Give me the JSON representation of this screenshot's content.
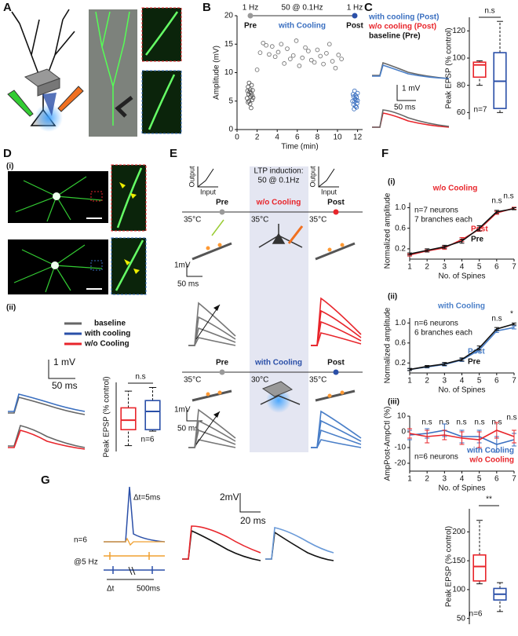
{
  "panel_labels": [
    "A",
    "B",
    "C",
    "D",
    "E",
    "F",
    "G"
  ],
  "panel_B": {
    "top": [
      "1 Hz",
      "50 @ 0.1Hz",
      "1 Hz"
    ],
    "phases": [
      "Pre",
      "with Cooling",
      "Post"
    ]
  },
  "panel_C": {
    "legend": [
      "with cooling (Post)",
      "w/o cooling (Post)",
      "baseline (Pre)"
    ],
    "scale": [
      "1 mV",
      "50 ms"
    ]
  },
  "panel_D": {
    "sub": [
      "(i)",
      "(ii)"
    ],
    "legend": [
      "baseline",
      "with cooling",
      "w/o Cooling"
    ],
    "scale": [
      "1 mV",
      "50 ms"
    ]
  },
  "panel_E": {
    "io": [
      "Output",
      "Input"
    ],
    "induction": [
      "LTP induction:",
      "50 @ 0.1Hz"
    ],
    "row1": {
      "phases": [
        "Pre",
        "w/o Cooling",
        "Post"
      ],
      "temps": [
        "35°C",
        "35°C",
        "35°C"
      ],
      "scale": [
        "1mV",
        "50 ms"
      ]
    },
    "row2": {
      "phases": [
        "Pre",
        "with Cooling",
        "Post"
      ],
      "temps": [
        "35°C",
        "30°C",
        "35°C"
      ],
      "scale": [
        "1mV",
        "50 ms"
      ]
    }
  },
  "panel_F": {
    "sub": [
      "(i)",
      "(ii)",
      "(iii)"
    ]
  },
  "panel_G": {
    "dt_label": "Δt=5ms",
    "n": "n=6",
    "freq": "@5 Hz",
    "dt": "Δt",
    "interval": "500ms",
    "scale": [
      "2mV",
      "20 ms"
    ]
  },
  "chart_data": [
    {
      "type": "scatter",
      "xlabel": "Time (min)",
      "ylabel": "Amplitude (mV)",
      "xlim": [
        0,
        12.5
      ],
      "ylim": [
        0,
        20
      ],
      "xticks": [
        0,
        2,
        4,
        6,
        8,
        10,
        12
      ],
      "yticks": [
        0,
        5,
        10,
        15,
        20
      ],
      "series": [
        {
          "color": "#555555",
          "x": [
            1.0,
            1.05,
            1.1,
            1.1,
            1.15,
            1.2,
            1.2,
            1.25,
            1.3,
            1.3,
            1.35,
            1.4,
            1.4,
            1.45,
            1.5,
            1.5,
            1.55,
            1.6
          ],
          "values": [
            5.5,
            6.8,
            4.8,
            7.5,
            6.2,
            5.0,
            8.2,
            6.6,
            4.5,
            7.0,
            5.8,
            6.4,
            3.8,
            7.8,
            5.2,
            6.0,
            6.9,
            5.6
          ]
        },
        {
          "color": "#777777",
          "x": [
            2.0,
            2.3,
            2.6,
            2.9,
            3.2,
            3.5,
            3.8,
            4.1,
            4.4,
            4.7,
            5.0,
            5.3,
            5.6,
            5.9,
            6.2,
            6.5,
            6.8,
            7.1,
            7.4,
            7.7,
            8.0,
            8.3,
            8.6,
            8.9,
            9.2,
            9.5,
            9.8,
            10.1,
            10.4
          ],
          "values": [
            10.5,
            13.5,
            15.2,
            14.8,
            13.2,
            14.6,
            12.8,
            13.6,
            15.0,
            11.6,
            14.2,
            12.4,
            13.0,
            15.6,
            11.2,
            12.6,
            14.4,
            13.8,
            12.2,
            11.8,
            14.0,
            12.9,
            11.5,
            13.4,
            15.0,
            12.0,
            10.8,
            13.1,
            12.4
          ]
        },
        {
          "color": "#3a6fc0",
          "x": [
            11.5,
            11.55,
            11.6,
            11.6,
            11.65,
            11.7,
            11.7,
            11.75,
            11.8,
            11.8,
            11.85,
            11.9,
            11.9,
            11.95,
            12.0,
            12.0
          ],
          "values": [
            5.0,
            6.2,
            4.4,
            5.8,
            3.6,
            6.8,
            4.9,
            5.4,
            4.1,
            6.0,
            5.2,
            3.9,
            5.7,
            4.6,
            6.4,
            5.1
          ]
        }
      ]
    },
    {
      "type": "box",
      "ylabel": "Peak EPSP (% control)",
      "ylim": [
        55,
        130
      ],
      "yticks": [
        60,
        80,
        100,
        120
      ],
      "boxes": [
        {
          "color": "#e8252b",
          "stats": [
            80,
            86,
            95,
            97,
            98
          ]
        },
        {
          "color": "#2a4fa8",
          "stats": [
            60,
            63,
            83,
            104,
            127
          ]
        }
      ],
      "annotations": [
        "n.s",
        "n=7"
      ]
    },
    {
      "type": "box",
      "ylabel": "Peak EPSP (% control)",
      "ylim": [
        45,
        140
      ],
      "boxes": [
        {
          "color": "#e8252b",
          "stats": [
            53,
            75,
            88,
            105,
            128
          ]
        },
        {
          "color": "#2a4fa8",
          "stats": [
            73,
            75,
            100,
            115,
            133
          ]
        }
      ],
      "annotations": [
        "n.s",
        "n=6"
      ]
    },
    {
      "type": "line",
      "title": "w/o Cooling",
      "xlabel": "No. of Spines",
      "ylabel": "Normalized amplitude",
      "x": [
        1,
        2,
        3,
        4,
        5,
        6,
        7
      ],
      "xlim": [
        1,
        7
      ],
      "ylim": [
        0,
        1.1
      ],
      "xticks": [
        1,
        2,
        3,
        4,
        5,
        6,
        7
      ],
      "yticks": [
        0.2,
        0.6,
        {
          "value": 1,
          "label": "1.0"
        }
      ],
      "series": [
        {
          "name": "Post",
          "color": "#e8252b",
          "values": [
            0.08,
            0.16,
            0.22,
            0.38,
            0.58,
            0.9,
            0.99
          ],
          "errors": [
            0.02,
            0.02,
            0.03,
            0.04,
            0.04,
            0.03,
            0.02
          ]
        },
        {
          "name": "Pre",
          "color": "#111111",
          "values": [
            0.1,
            0.17,
            0.24,
            0.35,
            0.6,
            0.92,
            0.98
          ],
          "errors": [
            0.02,
            0.03,
            0.03,
            0.04,
            0.05,
            0.03,
            0.02
          ]
        }
      ],
      "annotations": [
        "n=7 neurons",
        "7 branches each",
        "n.s",
        "n.s"
      ]
    },
    {
      "type": "line",
      "title": "with Cooling",
      "xlabel": "No. of Spines",
      "ylabel": "Normalized amplitude",
      "x": [
        1,
        2,
        3,
        4,
        5,
        6,
        7
      ],
      "xlim": [
        1,
        7
      ],
      "ylim": [
        0,
        1.1
      ],
      "xticks": [
        1,
        2,
        3,
        4,
        5,
        6,
        7
      ],
      "yticks": [
        0.2,
        0.6,
        {
          "value": 1,
          "label": "1.0"
        }
      ],
      "series": [
        {
          "name": "Post",
          "color": "#4a7fc8",
          "values": [
            0.07,
            0.12,
            0.17,
            0.26,
            0.46,
            0.84,
            0.91
          ],
          "errors": [
            0.02,
            0.02,
            0.03,
            0.03,
            0.04,
            0.03,
            0.03
          ]
        },
        {
          "name": "Pre",
          "color": "#111111",
          "values": [
            0.07,
            0.13,
            0.18,
            0.27,
            0.5,
            0.88,
            0.98
          ],
          "errors": [
            0.02,
            0.02,
            0.03,
            0.03,
            0.04,
            0.03,
            0.02
          ]
        }
      ],
      "annotations": [
        "n=6 neurons",
        "6 branches each",
        "n.s",
        "*"
      ]
    },
    {
      "type": "line",
      "xlabel": "No. of Spines",
      "ylabel": "AmpPost-AmpCtl (%)",
      "x": [
        1,
        2,
        3,
        4,
        5,
        6,
        7
      ],
      "xlim": [
        1,
        7
      ],
      "ylim": [
        -25,
        10
      ],
      "xticks": [
        1,
        2,
        3,
        4,
        5,
        6,
        7
      ],
      "yticks": [
        -20,
        -10,
        0,
        10
      ],
      "series": [
        {
          "name": "with Cooling",
          "color": "#3a6fc0",
          "values": [
            -2,
            -1,
            1,
            -3,
            -3,
            -8,
            -5
          ],
          "errors": [
            3,
            3,
            4,
            4,
            4,
            5,
            4
          ]
        },
        {
          "name": "w/o Cooling",
          "color": "#e8252b",
          "values": [
            -1,
            -3,
            -2,
            -4,
            -5,
            1,
            -3
          ],
          "errors": [
            3,
            4,
            3,
            4,
            5,
            5,
            4
          ]
        }
      ],
      "annotations": [
        "n.s",
        "n.s",
        "n.s",
        "n.s",
        "n.s",
        "n.s",
        "n=6 neurons"
      ]
    },
    {
      "type": "box",
      "ylabel": "Peak EPSP (% control)",
      "ylim": [
        40,
        240
      ],
      "yticks": [
        50,
        100,
        150,
        200
      ],
      "boxes": [
        {
          "color": "#e8252b",
          "stats": [
            110,
            115,
            140,
            160,
            220
          ]
        },
        {
          "color": "#2a4fa8",
          "stats": [
            62,
            82,
            92,
            102,
            112
          ]
        }
      ],
      "annotations": [
        "**",
        "n=6"
      ]
    }
  ]
}
